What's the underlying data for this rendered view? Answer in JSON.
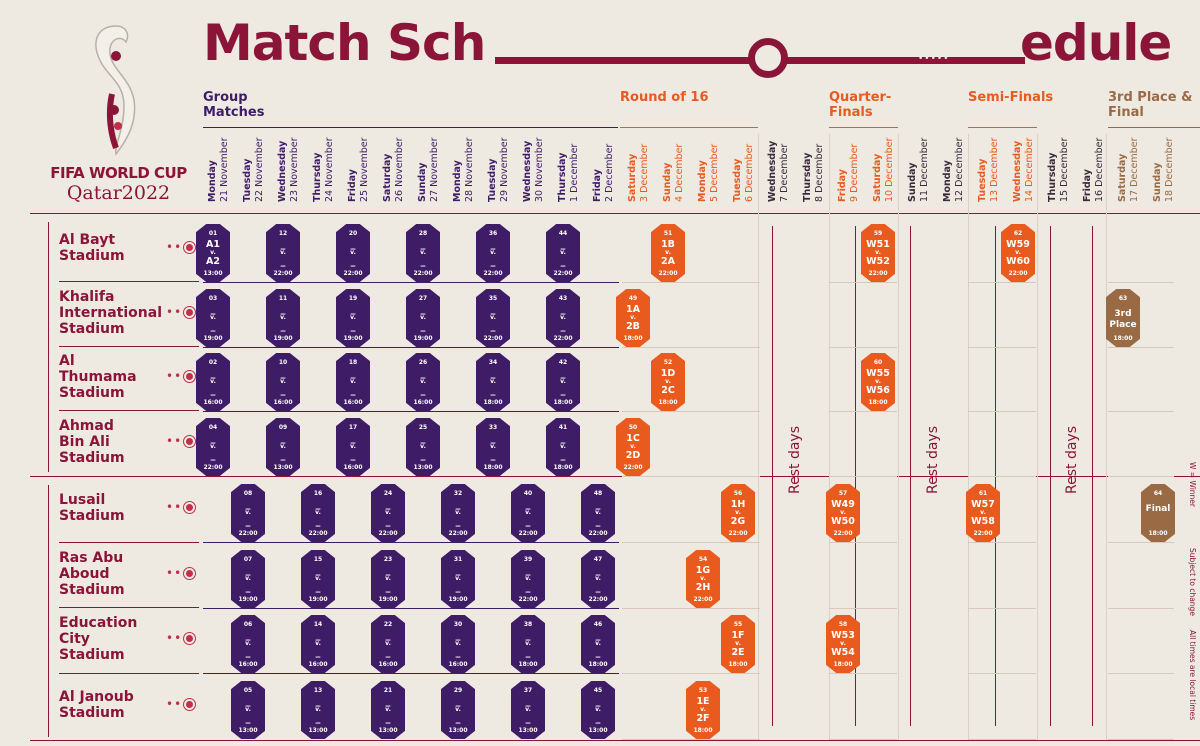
{
  "title_left": "Match Sch",
  "title_right": "edule",
  "logo": {
    "line1": "FIFA WORLD CUP",
    "line2": "Qatar2022"
  },
  "stages": [
    {
      "label": "Group Matches",
      "color": "#3f1c66"
    },
    {
      "label": "Round of 16",
      "color": "#e85a1e"
    },
    {
      "label": "Quarter-Finals",
      "color": "#e85a1e"
    },
    {
      "label": "Semi-Finals",
      "color": "#e85a1e"
    },
    {
      "label": "3rd Place & Final",
      "color": "#9a6a45"
    }
  ],
  "days": [
    {
      "wd": "Monday",
      "date": "21 November",
      "stage": "group"
    },
    {
      "wd": "Tuesday",
      "date": "22 November",
      "stage": "group"
    },
    {
      "wd": "Wednesday",
      "date": "23 November",
      "stage": "group"
    },
    {
      "wd": "Thursday",
      "date": "24 November",
      "stage": "group"
    },
    {
      "wd": "Friday",
      "date": "25 November",
      "stage": "group"
    },
    {
      "wd": "Saturday",
      "date": "26 November",
      "stage": "group"
    },
    {
      "wd": "Sunday",
      "date": "27 November",
      "stage": "group"
    },
    {
      "wd": "Monday",
      "date": "28 November",
      "stage": "group"
    },
    {
      "wd": "Tuesday",
      "date": "29 November",
      "stage": "group"
    },
    {
      "wd": "Wednesday",
      "date": "30 November",
      "stage": "group"
    },
    {
      "wd": "Thursday",
      "date": "1 December",
      "stage": "group"
    },
    {
      "wd": "Friday",
      "date": "2 December",
      "stage": "group"
    },
    {
      "wd": "Saturday",
      "date": "3 December",
      "stage": "r16"
    },
    {
      "wd": "Sunday",
      "date": "4 December",
      "stage": "r16"
    },
    {
      "wd": "Monday",
      "date": "5 December",
      "stage": "r16"
    },
    {
      "wd": "Tuesday",
      "date": "6 December",
      "stage": "r16"
    },
    {
      "wd": "Wednesday",
      "date": "7 December",
      "stage": "rest"
    },
    {
      "wd": "Thursday",
      "date": "8 December",
      "stage": "rest"
    },
    {
      "wd": "Friday",
      "date": "9 December",
      "stage": "qf"
    },
    {
      "wd": "Saturday",
      "date": "10 December",
      "stage": "qf"
    },
    {
      "wd": "Sunday",
      "date": "11 December",
      "stage": "rest"
    },
    {
      "wd": "Monday",
      "date": "12 December",
      "stage": "rest"
    },
    {
      "wd": "Tuesday",
      "date": "13 December",
      "stage": "sf"
    },
    {
      "wd": "Wednesday",
      "date": "14 December",
      "stage": "sf"
    },
    {
      "wd": "Thursday",
      "date": "15 December",
      "stage": "rest"
    },
    {
      "wd": "Friday",
      "date": "16 December",
      "stage": "rest"
    },
    {
      "wd": "Saturday",
      "date": "17 December",
      "stage": "final"
    },
    {
      "wd": "Sunday",
      "date": "18 December",
      "stage": "final"
    }
  ],
  "stadiums": [
    {
      "name": "Al Bayt Stadium",
      "lines": [
        "Al Bayt",
        "Stadium"
      ]
    },
    {
      "name": "Khalifa International Stadium",
      "lines": [
        "Khalifa",
        "International",
        "Stadium"
      ]
    },
    {
      "name": "Al Thumama Stadium",
      "lines": [
        "Al",
        "Thumama",
        "Stadium"
      ]
    },
    {
      "name": "Ahmad Bin Ali Stadium",
      "lines": [
        "Ahmad",
        "Bin Ali",
        "Stadium"
      ]
    },
    {
      "name": "Lusail Stadium",
      "lines": [
        "Lusail",
        "Stadium"
      ]
    },
    {
      "name": "Ras Abu Aboud Stadium",
      "lines": [
        "Ras Abu",
        "Aboud",
        "Stadium"
      ]
    },
    {
      "name": "Education City Stadium",
      "lines": [
        "Education",
        "City",
        "Stadium"
      ]
    },
    {
      "name": "Al Janoub Stadium",
      "lines": [
        "Al Janoub",
        "Stadium"
      ]
    }
  ],
  "matches": [
    {
      "row": 0,
      "col": 0,
      "no": "01",
      "a": "A1",
      "b": "A2",
      "time": "13:00",
      "kind": "g"
    },
    {
      "row": 0,
      "col": 2,
      "no": "12",
      "a": "_",
      "b": "_",
      "time": "22:00",
      "kind": "g"
    },
    {
      "row": 0,
      "col": 4,
      "no": "20",
      "a": "_",
      "b": "_",
      "time": "22:00",
      "kind": "g"
    },
    {
      "row": 0,
      "col": 6,
      "no": "28",
      "a": "_",
      "b": "_",
      "time": "22:00",
      "kind": "g"
    },
    {
      "row": 0,
      "col": 8,
      "no": "36",
      "a": "_",
      "b": "_",
      "time": "22:00",
      "kind": "g"
    },
    {
      "row": 0,
      "col": 10,
      "no": "44",
      "a": "_",
      "b": "_",
      "time": "22:00",
      "kind": "g"
    },
    {
      "row": 0,
      "col": 13,
      "no": "51",
      "a": "1B",
      "b": "2A",
      "time": "22:00",
      "kind": "r"
    },
    {
      "row": 0,
      "col": 19,
      "no": "59",
      "a": "W51",
      "b": "W52",
      "time": "22:00",
      "kind": "r"
    },
    {
      "row": 0,
      "col": 23,
      "no": "62",
      "a": "W59",
      "b": "W60",
      "time": "22:00",
      "kind": "r"
    },
    {
      "row": 1,
      "col": 0,
      "no": "03",
      "a": "_",
      "b": "_",
      "time": "19:00",
      "kind": "g"
    },
    {
      "row": 1,
      "col": 2,
      "no": "11",
      "a": "_",
      "b": "_",
      "time": "19:00",
      "kind": "g"
    },
    {
      "row": 1,
      "col": 4,
      "no": "19",
      "a": "_",
      "b": "_",
      "time": "19:00",
      "kind": "g"
    },
    {
      "row": 1,
      "col": 6,
      "no": "27",
      "a": "_",
      "b": "_",
      "time": "19:00",
      "kind": "g"
    },
    {
      "row": 1,
      "col": 8,
      "no": "35",
      "a": "_",
      "b": "_",
      "time": "22:00",
      "kind": "g"
    },
    {
      "row": 1,
      "col": 10,
      "no": "43",
      "a": "_",
      "b": "_",
      "time": "22:00",
      "kind": "g"
    },
    {
      "row": 1,
      "col": 12,
      "no": "49",
      "a": "1A",
      "b": "2B",
      "time": "18:00",
      "kind": "r"
    },
    {
      "row": 1,
      "col": 26,
      "no": "63",
      "a": "3rd",
      "b": "Place",
      "time": "18:00",
      "kind": "o",
      "single": true
    },
    {
      "row": 2,
      "col": 0,
      "no": "02",
      "a": "_",
      "b": "_",
      "time": "16:00",
      "kind": "g"
    },
    {
      "row": 2,
      "col": 2,
      "no": "10",
      "a": "_",
      "b": "_",
      "time": "16:00",
      "kind": "g"
    },
    {
      "row": 2,
      "col": 4,
      "no": "18",
      "a": "_",
      "b": "_",
      "time": "16:00",
      "kind": "g"
    },
    {
      "row": 2,
      "col": 6,
      "no": "26",
      "a": "_",
      "b": "_",
      "time": "16:00",
      "kind": "g"
    },
    {
      "row": 2,
      "col": 8,
      "no": "34",
      "a": "_",
      "b": "_",
      "time": "18:00",
      "kind": "g"
    },
    {
      "row": 2,
      "col": 10,
      "no": "42",
      "a": "_",
      "b": "_",
      "time": "18:00",
      "kind": "g"
    },
    {
      "row": 2,
      "col": 13,
      "no": "52",
      "a": "1D",
      "b": "2C",
      "time": "18:00",
      "kind": "r"
    },
    {
      "row": 2,
      "col": 19,
      "no": "60",
      "a": "W55",
      "b": "W56",
      "time": "18:00",
      "kind": "r"
    },
    {
      "row": 3,
      "col": 0,
      "no": "04",
      "a": "_",
      "b": "_",
      "time": "22:00",
      "kind": "g"
    },
    {
      "row": 3,
      "col": 2,
      "no": "09",
      "a": "_",
      "b": "_",
      "time": "13:00",
      "kind": "g"
    },
    {
      "row": 3,
      "col": 4,
      "no": "17",
      "a": "_",
      "b": "_",
      "time": "16:00",
      "kind": "g"
    },
    {
      "row": 3,
      "col": 6,
      "no": "25",
      "a": "_",
      "b": "_",
      "time": "13:00",
      "kind": "g"
    },
    {
      "row": 3,
      "col": 8,
      "no": "33",
      "a": "_",
      "b": "_",
      "time": "18:00",
      "kind": "g"
    },
    {
      "row": 3,
      "col": 10,
      "no": "41",
      "a": "_",
      "b": "_",
      "time": "18:00",
      "kind": "g"
    },
    {
      "row": 3,
      "col": 12,
      "no": "50",
      "a": "1C",
      "b": "2D",
      "time": "22:00",
      "kind": "r"
    },
    {
      "row": 4,
      "col": 1,
      "no": "08",
      "a": "_",
      "b": "_",
      "time": "22:00",
      "kind": "g"
    },
    {
      "row": 4,
      "col": 3,
      "no": "16",
      "a": "_",
      "b": "_",
      "time": "22:00",
      "kind": "g"
    },
    {
      "row": 4,
      "col": 5,
      "no": "24",
      "a": "_",
      "b": "_",
      "time": "22:00",
      "kind": "g"
    },
    {
      "row": 4,
      "col": 7,
      "no": "32",
      "a": "_",
      "b": "_",
      "time": "22:00",
      "kind": "g"
    },
    {
      "row": 4,
      "col": 9,
      "no": "40",
      "a": "_",
      "b": "_",
      "time": "22:00",
      "kind": "g"
    },
    {
      "row": 4,
      "col": 11,
      "no": "48",
      "a": "_",
      "b": "_",
      "time": "22:00",
      "kind": "g"
    },
    {
      "row": 4,
      "col": 15,
      "no": "56",
      "a": "1H",
      "b": "2G",
      "time": "22:00",
      "kind": "r"
    },
    {
      "row": 4,
      "col": 18,
      "no": "57",
      "a": "W49",
      "b": "W50",
      "time": "22:00",
      "kind": "r"
    },
    {
      "row": 4,
      "col": 22,
      "no": "61",
      "a": "W57",
      "b": "W58",
      "time": "22:00",
      "kind": "r"
    },
    {
      "row": 4,
      "col": 27,
      "no": "64",
      "a": "Final",
      "b": "",
      "time": "18:00",
      "kind": "o",
      "single": true
    },
    {
      "row": 5,
      "col": 1,
      "no": "07",
      "a": "_",
      "b": "_",
      "time": "19:00",
      "kind": "g"
    },
    {
      "row": 5,
      "col": 3,
      "no": "15",
      "a": "_",
      "b": "_",
      "time": "19:00",
      "kind": "g"
    },
    {
      "row": 5,
      "col": 5,
      "no": "23",
      "a": "_",
      "b": "_",
      "time": "19:00",
      "kind": "g"
    },
    {
      "row": 5,
      "col": 7,
      "no": "31",
      "a": "_",
      "b": "_",
      "time": "19:00",
      "kind": "g"
    },
    {
      "row": 5,
      "col": 9,
      "no": "39",
      "a": "_",
      "b": "_",
      "time": "22:00",
      "kind": "g"
    },
    {
      "row": 5,
      "col": 11,
      "no": "47",
      "a": "_",
      "b": "_",
      "time": "22:00",
      "kind": "g"
    },
    {
      "row": 5,
      "col": 14,
      "no": "54",
      "a": "1G",
      "b": "2H",
      "time": "22:00",
      "kind": "r"
    },
    {
      "row": 6,
      "col": 1,
      "no": "06",
      "a": "_",
      "b": "_",
      "time": "16:00",
      "kind": "g"
    },
    {
      "row": 6,
      "col": 3,
      "no": "14",
      "a": "_",
      "b": "_",
      "time": "16:00",
      "kind": "g"
    },
    {
      "row": 6,
      "col": 5,
      "no": "22",
      "a": "_",
      "b": "_",
      "time": "16:00",
      "kind": "g"
    },
    {
      "row": 6,
      "col": 7,
      "no": "30",
      "a": "_",
      "b": "_",
      "time": "16:00",
      "kind": "g"
    },
    {
      "row": 6,
      "col": 9,
      "no": "38",
      "a": "_",
      "b": "_",
      "time": "18:00",
      "kind": "g"
    },
    {
      "row": 6,
      "col": 11,
      "no": "46",
      "a": "_",
      "b": "_",
      "time": "18:00",
      "kind": "g"
    },
    {
      "row": 6,
      "col": 15,
      "no": "55",
      "a": "1F",
      "b": "2E",
      "time": "18:00",
      "kind": "r"
    },
    {
      "row": 6,
      "col": 18,
      "no": "58",
      "a": "W53",
      "b": "W54",
      "time": "18:00",
      "kind": "r"
    },
    {
      "row": 7,
      "col": 1,
      "no": "05",
      "a": "_",
      "b": "_",
      "time": "13:00",
      "kind": "g"
    },
    {
      "row": 7,
      "col": 3,
      "no": "13",
      "a": "_",
      "b": "_",
      "time": "13:00",
      "kind": "g"
    },
    {
      "row": 7,
      "col": 5,
      "no": "21",
      "a": "_",
      "b": "_",
      "time": "13:00",
      "kind": "g"
    },
    {
      "row": 7,
      "col": 7,
      "no": "29",
      "a": "_",
      "b": "_",
      "time": "13:00",
      "kind": "g"
    },
    {
      "row": 7,
      "col": 9,
      "no": "37",
      "a": "_",
      "b": "_",
      "time": "13:00",
      "kind": "g"
    },
    {
      "row": 7,
      "col": 11,
      "no": "45",
      "a": "_",
      "b": "_",
      "time": "13:00",
      "kind": "g"
    },
    {
      "row": 7,
      "col": 14,
      "no": "53",
      "a": "1E",
      "b": "2F",
      "time": "18:00",
      "kind": "r"
    }
  ],
  "versus": "v.",
  "rest_label": "Rest days",
  "side_notes": [
    "W = Winner",
    "Subject to change",
    "All times are local times"
  ],
  "colors": {
    "maroon": "#8a1538",
    "purple": "#3f1c66",
    "orange": "#e85a1e",
    "gold": "#9a6a45"
  }
}
